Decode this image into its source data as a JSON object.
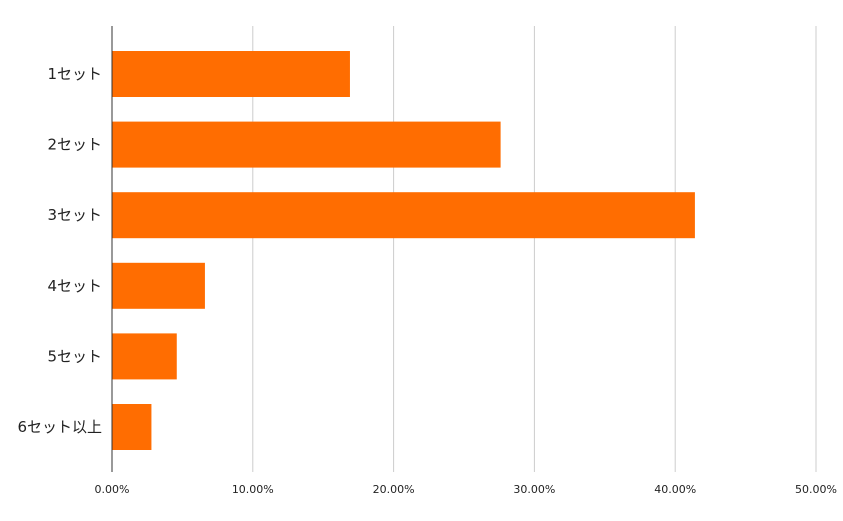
{
  "chart_data": {
    "type": "bar",
    "orientation": "horizontal",
    "categories": [
      "1セット",
      "2セット",
      "3セット",
      "4セット",
      "5セット",
      "6セット以上"
    ],
    "values": [
      16.9,
      27.6,
      41.4,
      6.6,
      4.6,
      2.8
    ],
    "unit": "%",
    "xlim": [
      0,
      50
    ],
    "x_ticks": [
      0,
      10,
      20,
      30,
      40,
      50
    ],
    "x_tick_labels": [
      "0.00%",
      "10.00%",
      "20.00%",
      "30.00%",
      "40.00%",
      "50.00%"
    ],
    "title": "",
    "xlabel": "",
    "ylabel": "",
    "grid": "vertical",
    "legend": "none",
    "bar_color": "#ff6d01"
  }
}
